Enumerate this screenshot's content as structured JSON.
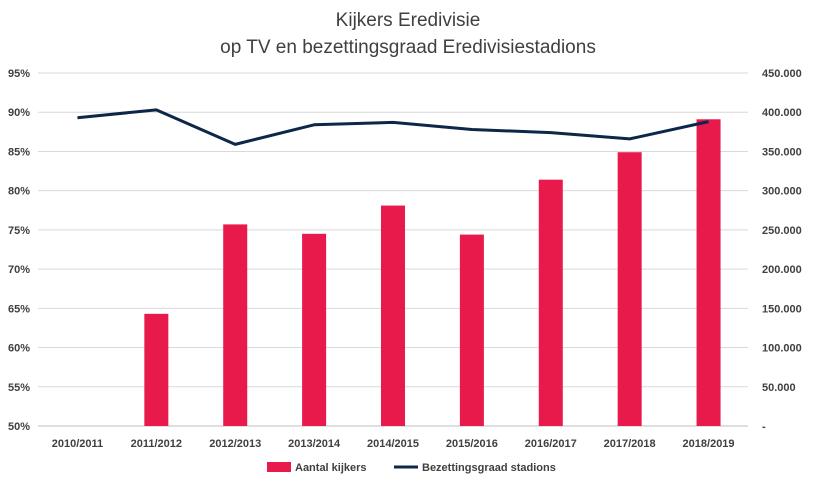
{
  "chart_data": {
    "type": "bar+line",
    "title": [
      "Kijkers Eredivisie",
      "op TV en bezettingsgraad Eredivisiestadions"
    ],
    "categories": [
      "2010/2011",
      "2011/2012",
      "2012/2013",
      "2013/2014",
      "2014/2015",
      "2015/2016",
      "2016/2017",
      "2017/2018",
      "2018/2019"
    ],
    "series": [
      {
        "name": "Aantal kijkers",
        "type": "bar",
        "axis": "right",
        "color": "#e8194b",
        "values": [
          null,
          143000,
          257000,
          245000,
          281000,
          244000,
          314000,
          349000,
          391000
        ]
      },
      {
        "name": "Bezettingsgraad stadions",
        "type": "line",
        "axis": "left",
        "color": "#0d2748",
        "values": [
          89.3,
          90.3,
          85.9,
          88.4,
          88.7,
          87.8,
          87.4,
          86.6,
          88.8
        ]
      }
    ],
    "left_axis": {
      "min": 50,
      "max": 95,
      "step": 5,
      "tick_labels": [
        "50%",
        "55%",
        "60%",
        "65%",
        "70%",
        "75%",
        "80%",
        "85%",
        "90%",
        "95%"
      ]
    },
    "right_axis": {
      "min": 0,
      "max": 450000,
      "step": 50000,
      "tick_labels": [
        "-",
        "50.000",
        "100.000",
        "150.000",
        "200.000",
        "250.000",
        "300.000",
        "350.000",
        "400.000",
        "450.000"
      ]
    },
    "grid": true,
    "legend_position": "bottom"
  }
}
